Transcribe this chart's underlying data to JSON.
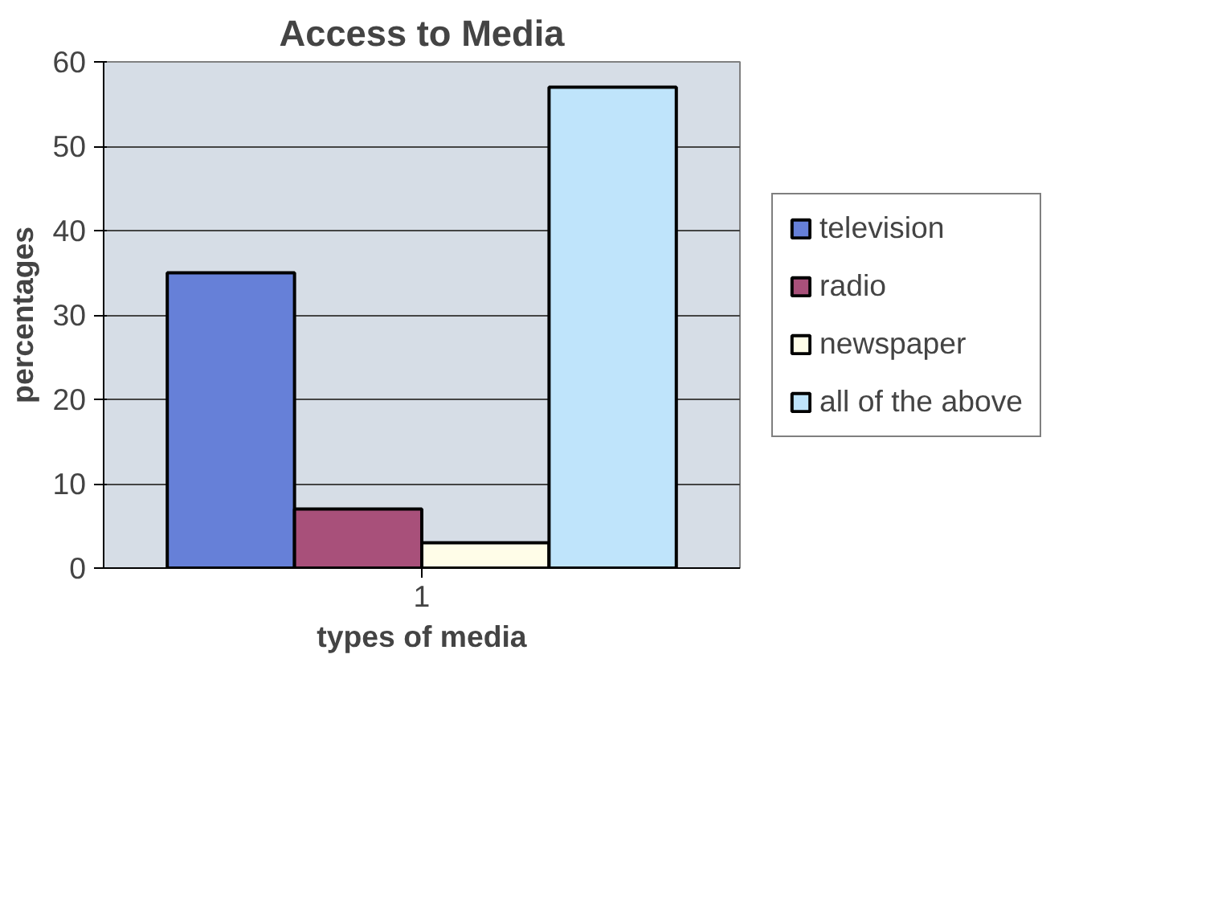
{
  "chart_data": {
    "type": "bar",
    "title": "Access to Media",
    "xlabel": "types of media",
    "ylabel": "percentages",
    "categories": [
      "1"
    ],
    "series": [
      {
        "name": "television",
        "color": "#6680d8",
        "values": [
          35
        ]
      },
      {
        "name": "radio",
        "color": "#a8507a",
        "values": [
          7
        ]
      },
      {
        "name": "newspaper",
        "color": "#fffde8",
        "values": [
          3
        ]
      },
      {
        "name": "all of the above",
        "color": "#bfe4fb",
        "values": [
          57
        ]
      }
    ],
    "ylim": [
      0,
      60
    ],
    "yticks": [
      0,
      10,
      20,
      30,
      40,
      50,
      60
    ],
    "grid": "y",
    "legend": "right"
  }
}
